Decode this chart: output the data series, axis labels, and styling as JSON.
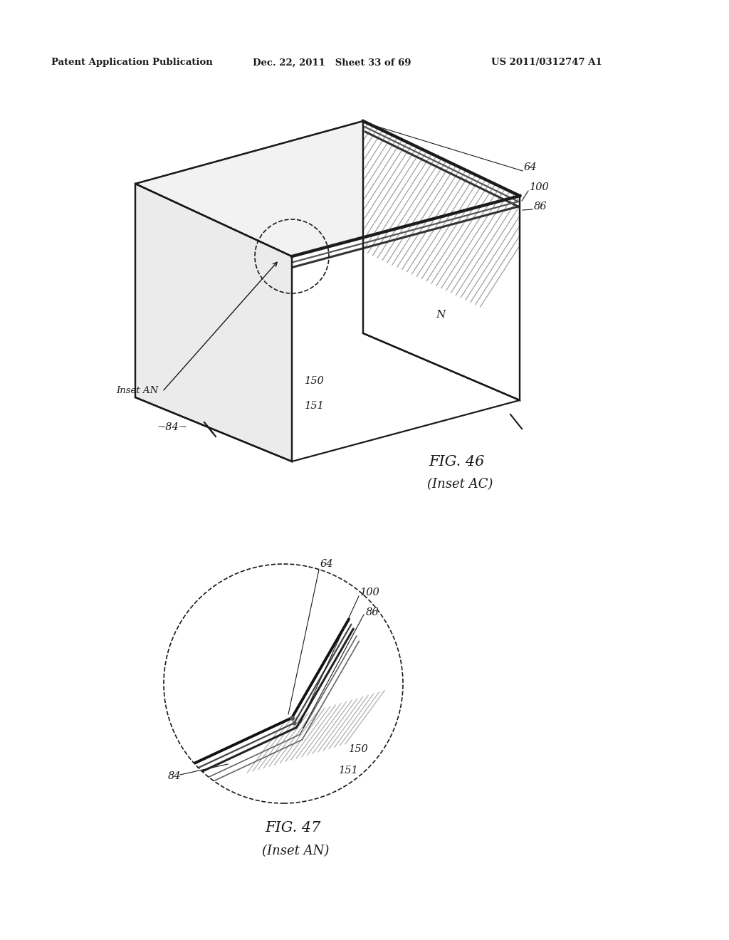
{
  "header_left": "Patent Application Publication",
  "header_mid": "Dec. 22, 2011   Sheet 33 of 69",
  "header_right": "US 2011/0312747 A1",
  "fig46_caption": "FIG. 46",
  "fig46_subcaption": "(Inset AC)",
  "fig47_caption": "FIG. 47",
  "fig47_subcaption": "(Inset AN)",
  "bg_color": "#ffffff",
  "line_color": "#1a1a1a"
}
